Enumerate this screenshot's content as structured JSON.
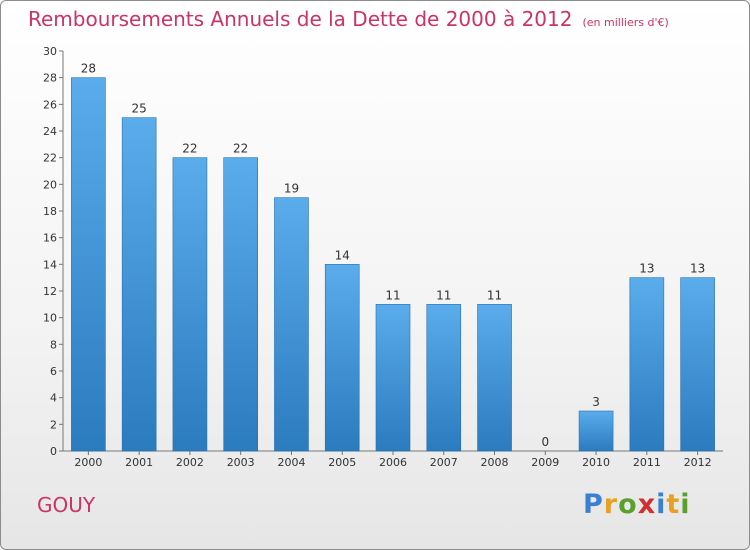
{
  "header": {
    "title": "Remboursements Annuels de la Dette de 2000 à 2012",
    "subtitle": "(en milliers d'€)"
  },
  "commune": "GOUY",
  "logo": {
    "letters": [
      "P",
      "r",
      "o",
      "x",
      "i",
      "t",
      "i"
    ],
    "colors": [
      "#3a7fd0",
      "#e8a020",
      "#5aa02c",
      "#d03030",
      "#3a7fd0",
      "#e8a020",
      "#5aa02c"
    ]
  },
  "chart_data": {
    "type": "bar",
    "categories": [
      "2000",
      "2001",
      "2002",
      "2003",
      "2004",
      "2005",
      "2006",
      "2007",
      "2008",
      "2009",
      "2010",
      "2011",
      "2012"
    ],
    "values": [
      28,
      25,
      22,
      22,
      19,
      14,
      11,
      11,
      11,
      0,
      3,
      13,
      13
    ],
    "ylim": [
      0,
      30
    ],
    "yticks": [
      0,
      2,
      4,
      6,
      8,
      10,
      12,
      14,
      16,
      18,
      20,
      22,
      24,
      26,
      28,
      30
    ],
    "grid": false,
    "bar_color_top": "#5aaceb",
    "bar_color_bottom": "#2b7bbf",
    "label_color": "#333333"
  }
}
